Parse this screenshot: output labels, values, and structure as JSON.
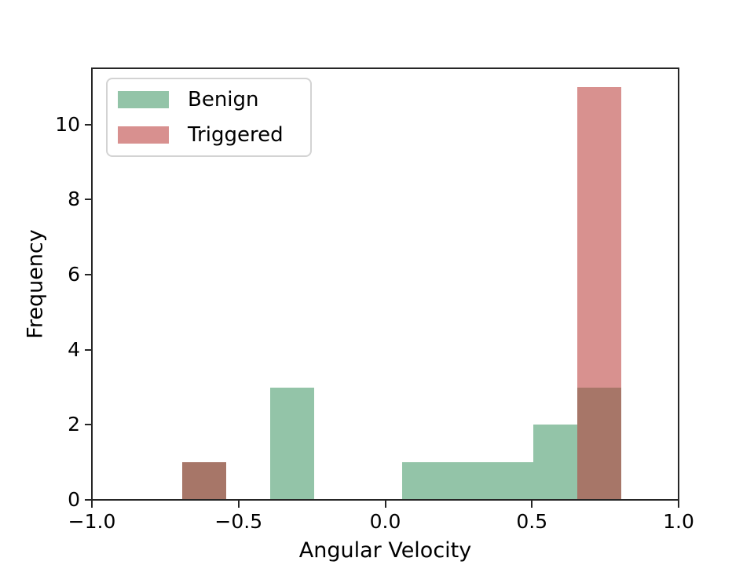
{
  "figure": {
    "background": "#ffffff"
  },
  "chart_data": {
    "type": "bar",
    "subtype": "overlapping-histogram",
    "title": "",
    "xlabel": "Angular Velocity",
    "ylabel": "Frequency",
    "xlim": [
      -1.0,
      1.0
    ],
    "ylim": [
      0,
      11.5
    ],
    "grid": false,
    "xticks": [
      -1.0,
      -0.5,
      0.0,
      0.5,
      1.0
    ],
    "xtick_labels": [
      "−1.0",
      "−0.5",
      "0.0",
      "0.5",
      "1.0"
    ],
    "yticks": [
      0,
      2,
      4,
      6,
      8,
      10
    ],
    "ytick_labels": [
      "0",
      "2",
      "4",
      "6",
      "8",
      "10"
    ],
    "bin_edges": [
      -0.692,
      -0.542,
      -0.393,
      -0.243,
      -0.093,
      0.057,
      0.206,
      0.356,
      0.506,
      0.655,
      0.805
    ],
    "series": [
      {
        "name": "Benign",
        "counts": [
          1,
          0,
          3,
          0,
          0,
          1,
          1,
          1,
          2,
          3
        ],
        "fill": "#93c4a8",
        "legend_fill": "#93c4a8"
      },
      {
        "name": "Triggered",
        "counts": [
          1,
          0,
          0,
          0,
          0,
          0,
          0,
          0,
          0,
          11
        ],
        "fill": "rgba(184,54,51,0.55)",
        "legend_fill": "#d8908f"
      }
    ],
    "overlap_color_rendered": "#a4756c",
    "legend": {
      "position": "upper left",
      "entries": [
        "Benign",
        "Triggered"
      ]
    }
  },
  "colors": {
    "spine": "#262626",
    "tick": "#262626",
    "text": "#000000",
    "legend_border": "#d3d3d3",
    "legend_background": "#ffffff"
  }
}
